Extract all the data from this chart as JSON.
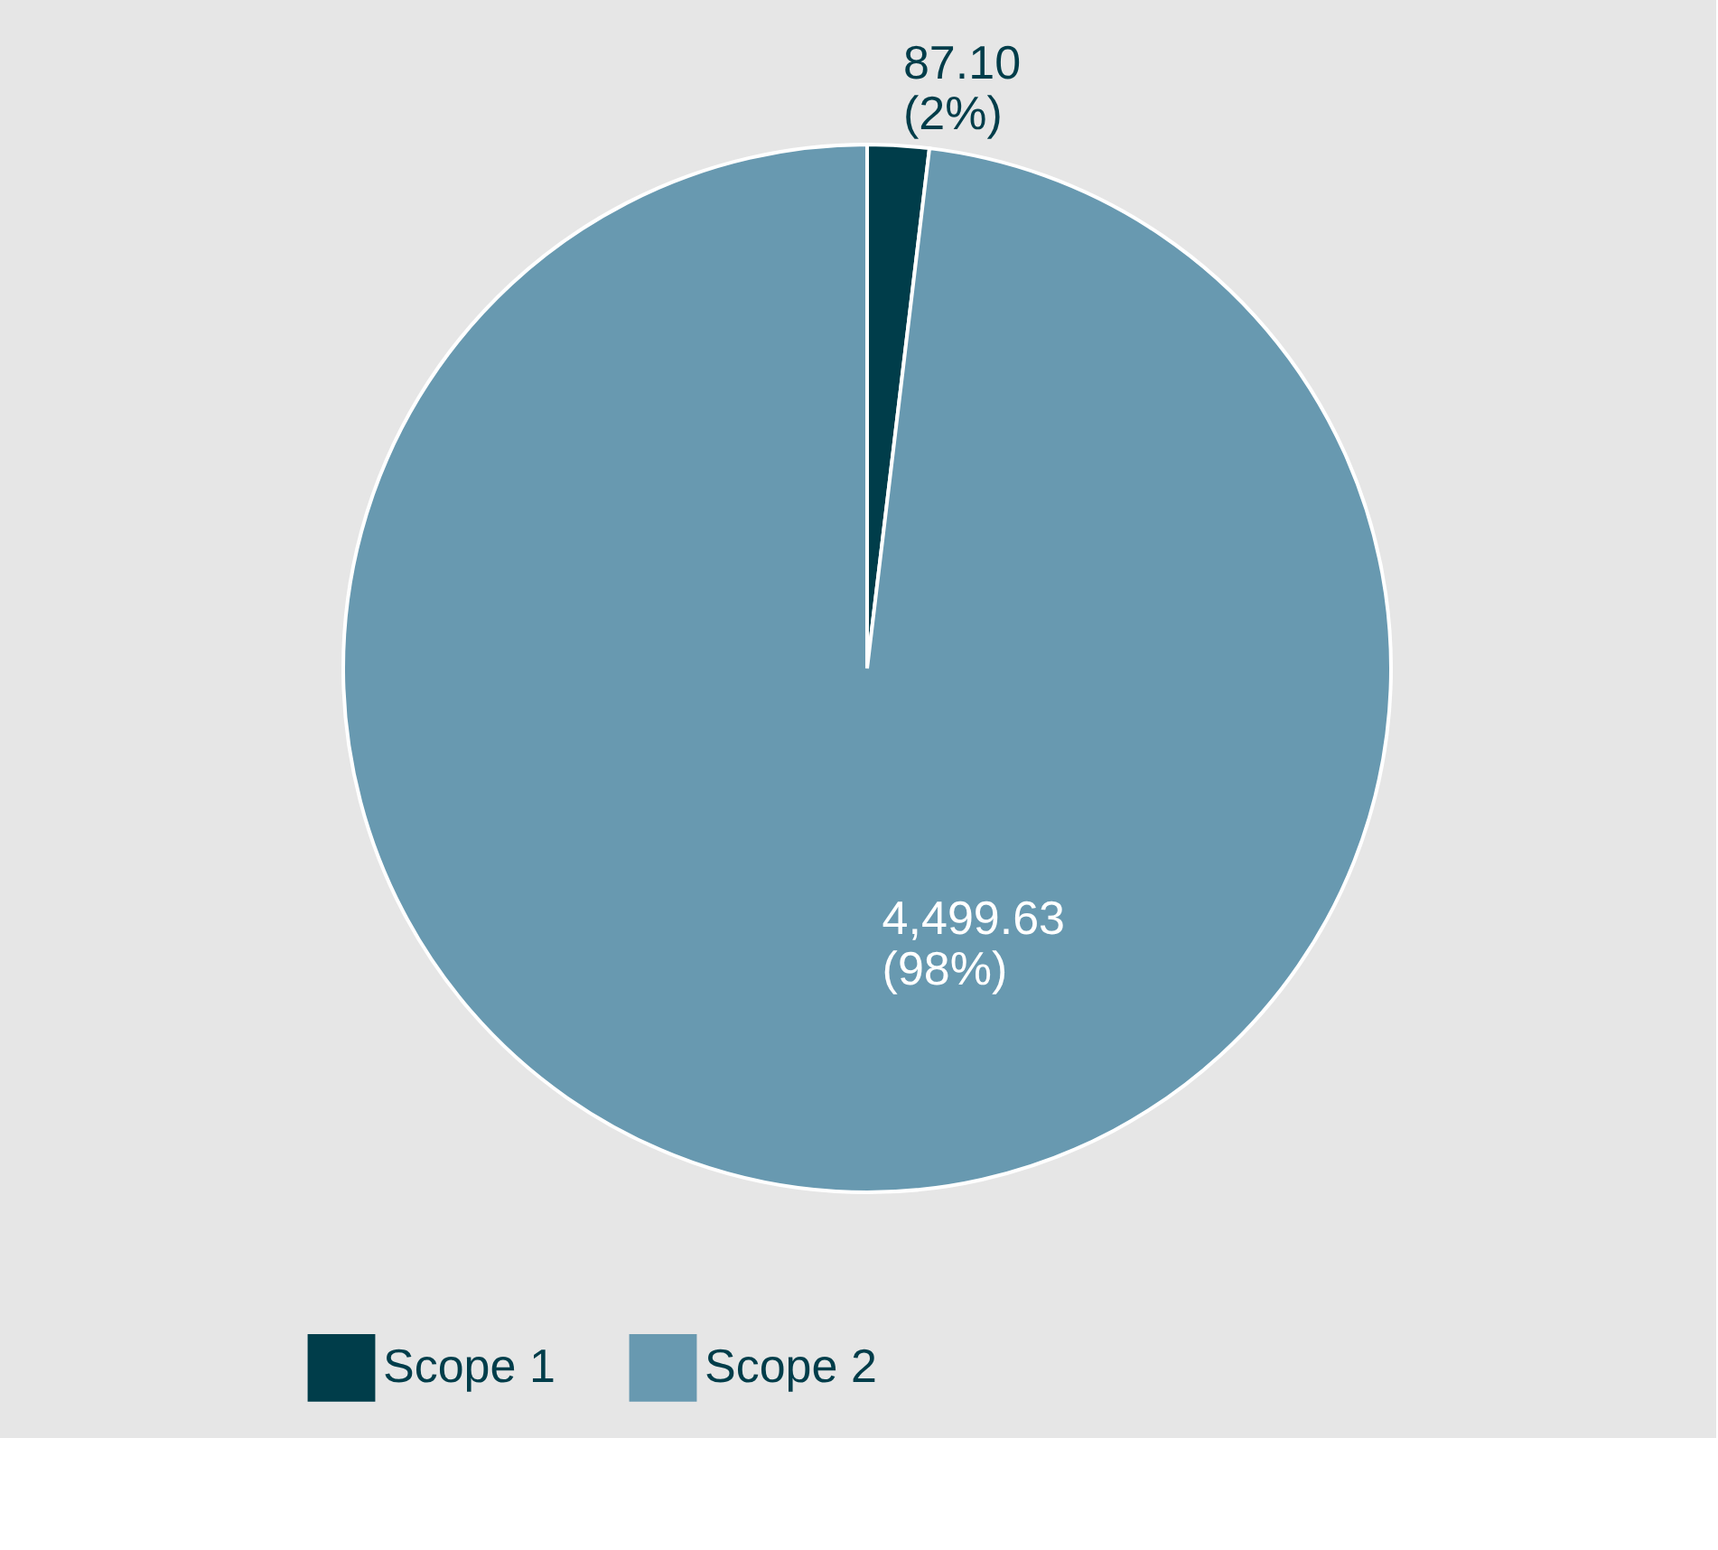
{
  "chart_data": {
    "type": "pie",
    "categories": [
      "Scope 1",
      "Scope 2"
    ],
    "values": [
      87.1,
      4499.63
    ],
    "colors": [
      "#003d4a",
      "#6899b0"
    ],
    "value_labels": [
      "87.10\n(2%)",
      "4,499.63\n(98%)"
    ],
    "legend": "bottom"
  }
}
